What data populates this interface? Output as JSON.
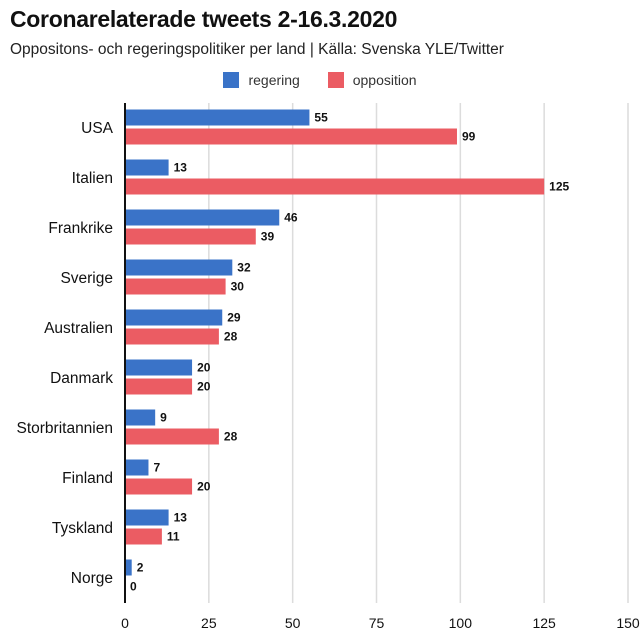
{
  "title": "Coronarelaterade tweets 2-16.3.2020",
  "subtitle": "Oppositons- och regeringspolitiker per land | Källa: Svenska YLE/Twitter",
  "colors": {
    "regering": "#3a73c8",
    "opposition": "#eb5c63"
  },
  "chart_data": {
    "type": "bar",
    "orientation": "horizontal",
    "categories": [
      "USA",
      "Italien",
      "Frankrike",
      "Sverige",
      "Australien",
      "Danmark",
      "Storbritannien",
      "Finland",
      "Tyskland",
      "Norge"
    ],
    "series": [
      {
        "name": "regering",
        "values": [
          55,
          13,
          46,
          32,
          29,
          20,
          9,
          7,
          13,
          2
        ]
      },
      {
        "name": "opposition",
        "values": [
          99,
          125,
          39,
          30,
          28,
          20,
          28,
          20,
          11,
          0
        ]
      }
    ],
    "xlim": [
      0,
      150
    ],
    "xticks": [
      0,
      25,
      50,
      75,
      100,
      125,
      150
    ],
    "grid": true,
    "legend_position": "top-center",
    "data_labels": true
  }
}
